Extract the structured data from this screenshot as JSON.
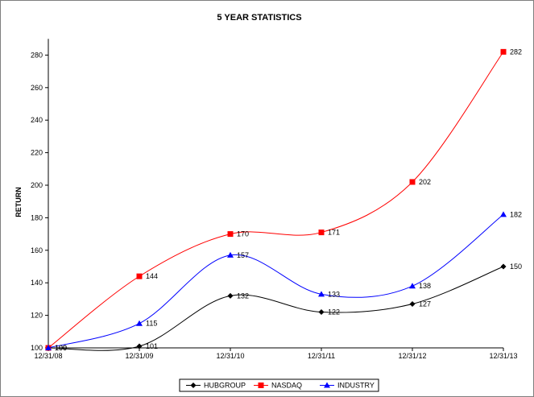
{
  "chart_data": {
    "type": "line",
    "title": "5 YEAR STATISTICS",
    "xlabel": "",
    "ylabel": "RETURN",
    "categories": [
      "12/31/08",
      "12/31/09",
      "12/31/10",
      "12/31/11",
      "12/31/12",
      "12/31/13"
    ],
    "ylim": [
      100,
      290
    ],
    "yticks": [
      100,
      120,
      140,
      160,
      180,
      200,
      220,
      240,
      260,
      280
    ],
    "grid": false,
    "legend_position": "bottom",
    "series": [
      {
        "name": "HUBGROUP",
        "values": [
          100,
          101,
          132,
          122,
          127,
          150
        ],
        "color": "#000000",
        "marker": "diamond"
      },
      {
        "name": "NASDAQ",
        "values": [
          100,
          144,
          170,
          171,
          202,
          282
        ],
        "color": "#ff0000",
        "marker": "square"
      },
      {
        "name": "INDUSTRY",
        "values": [
          100,
          115,
          157,
          133,
          138,
          182
        ],
        "color": "#0000ff",
        "marker": "triangle"
      }
    ]
  }
}
